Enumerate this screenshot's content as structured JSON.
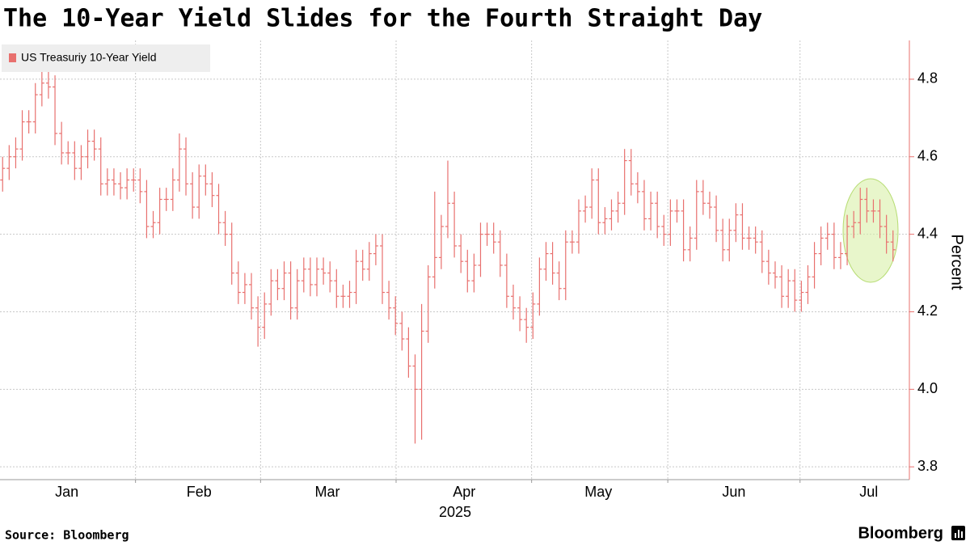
{
  "chart_data": {
    "type": "ohlc",
    "title": "The 10-Year Yield Slides for the Fourth Straight Day",
    "ylabel": "Percent",
    "x_year_label": "2025",
    "source": "Source: Bloomberg",
    "brand": "Bloomberg",
    "legend": "top-left",
    "grid": true,
    "ylim": [
      3.767,
      4.9
    ],
    "yticks": [
      3.8,
      {
        "value": 4,
        "label": "4.0"
      },
      4.2,
      4.4,
      4.6,
      4.8
    ],
    "xlim": [
      -0.4,
      138.5
    ],
    "xticks": [
      {
        "value": 9.8,
        "label": "Jan"
      },
      {
        "value": 30,
        "label": "Feb"
      },
      {
        "value": 49.6,
        "label": "Mar"
      },
      {
        "value": 70.5,
        "label": "Apr"
      },
      {
        "value": 91,
        "label": "May"
      },
      {
        "value": 111.7,
        "label": "Jun"
      },
      {
        "value": 132.3,
        "label": "Jul"
      }
    ],
    "xgrid": [
      20.3,
      39.4,
      60.1,
      80.8,
      101.6,
      121.8
    ],
    "series": [
      {
        "name": "US Treasuriy 10-Year Yield",
        "color": "#e8706e",
        "open": [
          4.54,
          4.57,
          4.6,
          4.62,
          4.69,
          4.69,
          4.76,
          4.79,
          4.78,
          4.66,
          4.61,
          4.61,
          4.57,
          4.6,
          4.64,
          4.62,
          4.53,
          4.54,
          4.53,
          4.52,
          4.54,
          4.54,
          4.51,
          4.42,
          4.43,
          4.49,
          4.49,
          4.54,
          4.62,
          4.53,
          4.47,
          4.55,
          4.53,
          4.5,
          4.43,
          4.4,
          4.3,
          4.25,
          4.27,
          4.21,
          4.16,
          4.22,
          4.28,
          4.26,
          4.3,
          4.21,
          4.28,
          4.31,
          4.27,
          4.31,
          4.3,
          4.28,
          4.24,
          4.24,
          4.25,
          4.33,
          4.31,
          4.35,
          4.37,
          4.25,
          4.21,
          4.17,
          4.13,
          4.06,
          4.0,
          4.15,
          4.29,
          4.34,
          4.42,
          4.48,
          4.37,
          4.33,
          4.28,
          4.32,
          4.4,
          4.4,
          4.38,
          4.32,
          4.24,
          4.21,
          4.18,
          4.16,
          4.22,
          4.31,
          4.35,
          4.3,
          4.26,
          4.38,
          4.38,
          4.46,
          4.47,
          4.54,
          4.43,
          4.44,
          4.46,
          4.48,
          4.59,
          4.53,
          4.51,
          4.44,
          4.48,
          4.42,
          4.4,
          4.46,
          4.46,
          4.36,
          4.39,
          4.51,
          4.48,
          4.47,
          4.41,
          4.36,
          4.41,
          4.45,
          4.39,
          4.39,
          4.38,
          4.33,
          4.3,
          4.29,
          4.24,
          4.28,
          4.23,
          4.25,
          4.29,
          4.35,
          4.39,
          4.4,
          4.34,
          4.35,
          4.42,
          4.43,
          4.49,
          4.46,
          4.46,
          4.42,
          4.38
        ],
        "high": [
          4.6,
          4.63,
          4.65,
          4.72,
          4.72,
          4.79,
          4.82,
          4.82,
          4.81,
          4.69,
          4.64,
          4.64,
          4.63,
          4.67,
          4.67,
          4.65,
          4.57,
          4.57,
          4.56,
          4.57,
          4.57,
          4.57,
          4.54,
          4.46,
          4.52,
          4.52,
          4.57,
          4.66,
          4.65,
          4.56,
          4.58,
          4.58,
          4.56,
          4.53,
          4.46,
          4.43,
          4.33,
          4.3,
          4.3,
          4.24,
          4.25,
          4.31,
          4.31,
          4.33,
          4.33,
          4.31,
          4.34,
          4.34,
          4.34,
          4.34,
          4.33,
          4.31,
          4.27,
          4.28,
          4.36,
          4.36,
          4.38,
          4.4,
          4.4,
          4.28,
          4.24,
          4.2,
          4.16,
          4.09,
          4.22,
          4.32,
          4.51,
          4.45,
          4.59,
          4.51,
          4.4,
          4.36,
          4.35,
          4.43,
          4.43,
          4.43,
          4.41,
          4.35,
          4.27,
          4.24,
          4.21,
          4.25,
          4.34,
          4.38,
          4.38,
          4.33,
          4.41,
          4.41,
          4.49,
          4.5,
          4.57,
          4.57,
          4.47,
          4.49,
          4.51,
          4.62,
          4.62,
          4.56,
          4.54,
          4.51,
          4.51,
          4.45,
          4.49,
          4.49,
          4.49,
          4.42,
          4.54,
          4.54,
          4.51,
          4.5,
          4.44,
          4.44,
          4.48,
          4.48,
          4.42,
          4.42,
          4.41,
          4.36,
          4.33,
          4.32,
          4.31,
          4.31,
          4.28,
          4.32,
          4.38,
          4.42,
          4.43,
          4.43,
          4.38,
          4.45,
          4.46,
          4.52,
          4.52,
          4.49,
          4.49,
          4.45,
          4.41
        ],
        "low": [
          4.51,
          4.54,
          4.57,
          4.59,
          4.66,
          4.66,
          4.73,
          4.75,
          4.63,
          4.58,
          4.58,
          4.54,
          4.54,
          4.57,
          4.59,
          4.5,
          4.5,
          4.5,
          4.49,
          4.49,
          4.51,
          4.48,
          4.39,
          4.39,
          4.4,
          4.46,
          4.46,
          4.51,
          4.5,
          4.44,
          4.44,
          4.5,
          4.47,
          4.4,
          4.37,
          4.27,
          4.22,
          4.22,
          4.18,
          4.11,
          4.13,
          4.19,
          4.23,
          4.23,
          4.18,
          4.18,
          4.25,
          4.24,
          4.24,
          4.27,
          4.25,
          4.21,
          4.21,
          4.21,
          4.22,
          4.28,
          4.28,
          4.32,
          4.22,
          4.18,
          4.14,
          4.1,
          4.03,
          3.86,
          3.87,
          4.12,
          4.26,
          4.31,
          4.39,
          4.34,
          4.3,
          4.25,
          4.25,
          4.29,
          4.37,
          4.35,
          4.29,
          4.21,
          4.18,
          4.15,
          4.12,
          4.13,
          4.19,
          4.28,
          4.27,
          4.23,
          4.23,
          4.35,
          4.35,
          4.43,
          4.44,
          4.4,
          4.4,
          4.41,
          4.43,
          4.45,
          4.5,
          4.48,
          4.41,
          4.41,
          4.39,
          4.37,
          4.37,
          4.43,
          4.33,
          4.33,
          4.36,
          4.45,
          4.44,
          4.38,
          4.33,
          4.33,
          4.38,
          4.36,
          4.36,
          4.35,
          4.3,
          4.27,
          4.26,
          4.21,
          4.21,
          4.2,
          4.2,
          4.22,
          4.26,
          4.32,
          4.36,
          4.31,
          4.31,
          4.32,
          4.39,
          4.4,
          4.43,
          4.43,
          4.39,
          4.35,
          4.33
        ],
        "close": [
          4.57,
          4.6,
          4.62,
          4.69,
          4.69,
          4.76,
          4.79,
          4.78,
          4.66,
          4.61,
          4.61,
          4.57,
          4.6,
          4.64,
          4.62,
          4.53,
          4.54,
          4.53,
          4.52,
          4.54,
          4.54,
          4.51,
          4.42,
          4.43,
          4.49,
          4.49,
          4.54,
          4.62,
          4.53,
          4.47,
          4.55,
          4.53,
          4.5,
          4.43,
          4.4,
          4.3,
          4.25,
          4.27,
          4.21,
          4.16,
          4.22,
          4.28,
          4.26,
          4.3,
          4.21,
          4.28,
          4.31,
          4.27,
          4.31,
          4.3,
          4.28,
          4.24,
          4.24,
          4.25,
          4.33,
          4.31,
          4.35,
          4.37,
          4.25,
          4.21,
          4.17,
          4.13,
          4.06,
          4.0,
          4.15,
          4.29,
          4.34,
          4.42,
          4.48,
          4.37,
          4.33,
          4.28,
          4.32,
          4.4,
          4.4,
          4.38,
          4.32,
          4.24,
          4.21,
          4.18,
          4.16,
          4.22,
          4.31,
          4.35,
          4.3,
          4.26,
          4.38,
          4.38,
          4.46,
          4.47,
          4.54,
          4.43,
          4.44,
          4.46,
          4.48,
          4.59,
          4.53,
          4.51,
          4.44,
          4.48,
          4.42,
          4.4,
          4.46,
          4.46,
          4.36,
          4.39,
          4.51,
          4.48,
          4.47,
          4.41,
          4.36,
          4.41,
          4.45,
          4.39,
          4.39,
          4.38,
          4.33,
          4.3,
          4.29,
          4.24,
          4.28,
          4.23,
          4.25,
          4.29,
          4.35,
          4.39,
          4.4,
          4.34,
          4.35,
          4.42,
          4.43,
          4.49,
          4.46,
          4.46,
          4.42,
          4.38,
          4.36
        ]
      }
    ]
  }
}
